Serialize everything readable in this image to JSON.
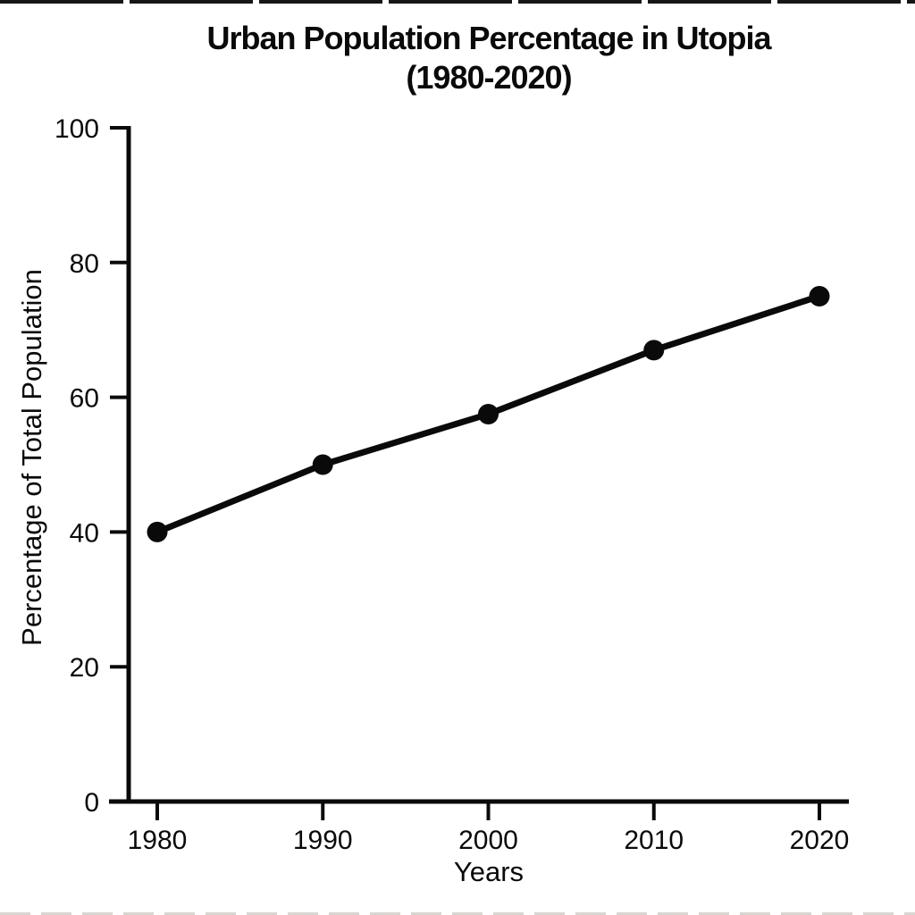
{
  "chart_data": {
    "type": "line",
    "title": "Urban Population Percentage in Utopia",
    "subtitle": "(1980-2020)",
    "xlabel": "Years",
    "ylabel": "Percentage of Total Population",
    "x": [
      1980,
      1990,
      2000,
      2010,
      2020
    ],
    "values": [
      40,
      50,
      57.5,
      67,
      75
    ],
    "xlim": [
      1980,
      2020
    ],
    "ylim": [
      0,
      100
    ],
    "xticks": [
      1980,
      1990,
      2000,
      2010,
      2020
    ],
    "yticks": [
      0,
      20,
      40,
      60,
      80,
      100
    ],
    "grid": false,
    "legend": false,
    "line_color": "#0a0a0a",
    "marker": "circle",
    "marker_color": "#0a0a0a",
    "axis_color": "#0a0a0a",
    "background": "#ffffff"
  }
}
